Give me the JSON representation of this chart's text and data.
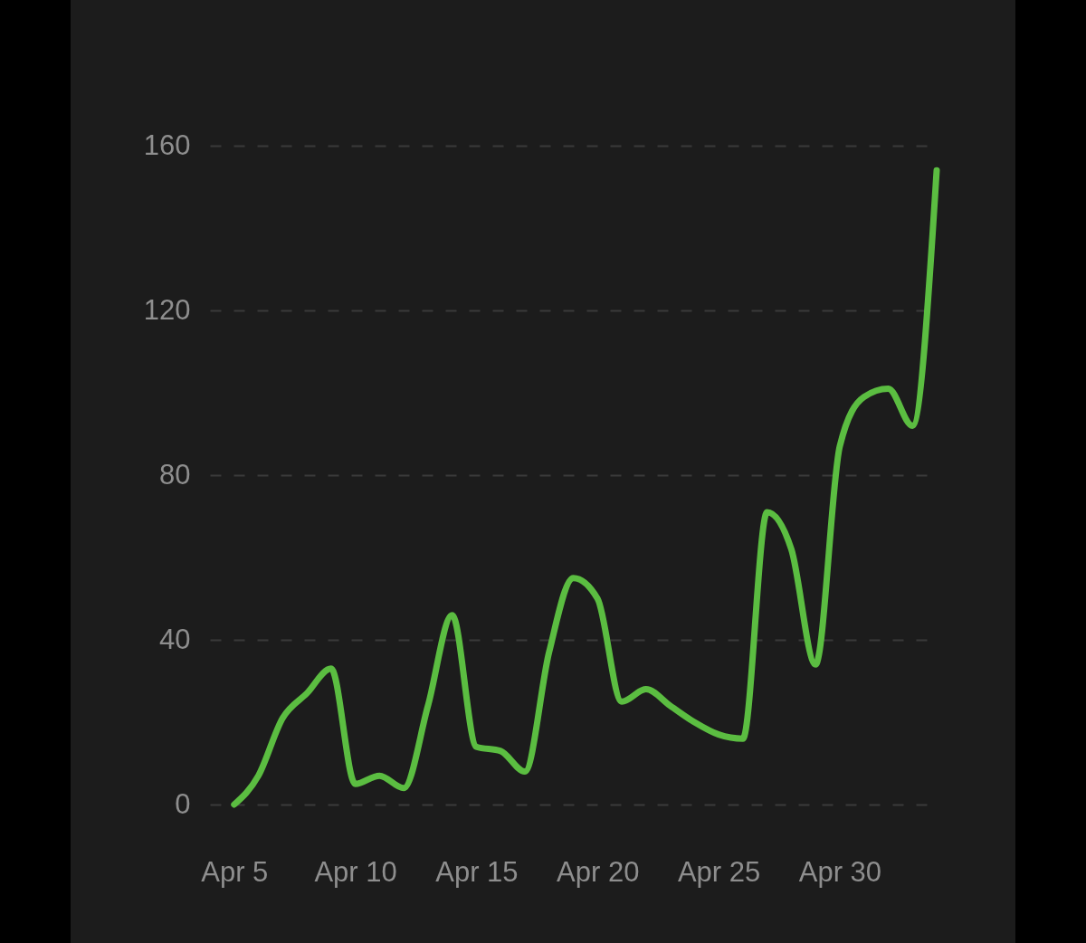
{
  "chart_data": {
    "type": "line",
    "x": [
      "--04-05",
      "--04-06",
      "--04-07",
      "--04-08",
      "--04-09",
      "--04-10",
      "--04-11",
      "--04-12",
      "--04-13",
      "--04-14",
      "--04-15",
      "--04-16",
      "--04-17",
      "--04-18",
      "--04-19",
      "--04-20",
      "--04-21",
      "--04-22",
      "--04-23",
      "--04-24",
      "--04-25",
      "--04-26",
      "--04-27",
      "--04-28",
      "--04-29",
      "--04-30",
      "--05-01",
      "--05-02",
      "--05-03",
      "--05-04"
    ],
    "series": [
      {
        "color": "#5bbd41",
        "values": [
          0,
          7,
          21,
          27,
          33,
          5,
          7,
          4,
          24,
          46,
          14,
          13,
          8,
          37,
          55,
          50,
          25,
          28,
          24,
          20,
          17,
          16,
          71,
          62,
          34,
          87,
          99,
          101,
          92,
          154
        ]
      }
    ],
    "xlim": [
      "--04-04",
      "--05-04"
    ],
    "xticks": [
      {
        "value": "--04-05",
        "label": "Apr 5"
      },
      {
        "value": "--04-10",
        "label": "Apr 10"
      },
      {
        "value": "--04-15",
        "label": "Apr 15"
      },
      {
        "value": "--04-20",
        "label": "Apr 20"
      },
      {
        "value": "--04-25",
        "label": "Apr 25"
      },
      {
        "value": "--04-30",
        "label": "Apr 30"
      }
    ],
    "ylim": [
      0,
      160
    ],
    "yticks": [
      0,
      40,
      80,
      120,
      160
    ],
    "grid": "y",
    "marker": "none",
    "line_style": "solid"
  }
}
